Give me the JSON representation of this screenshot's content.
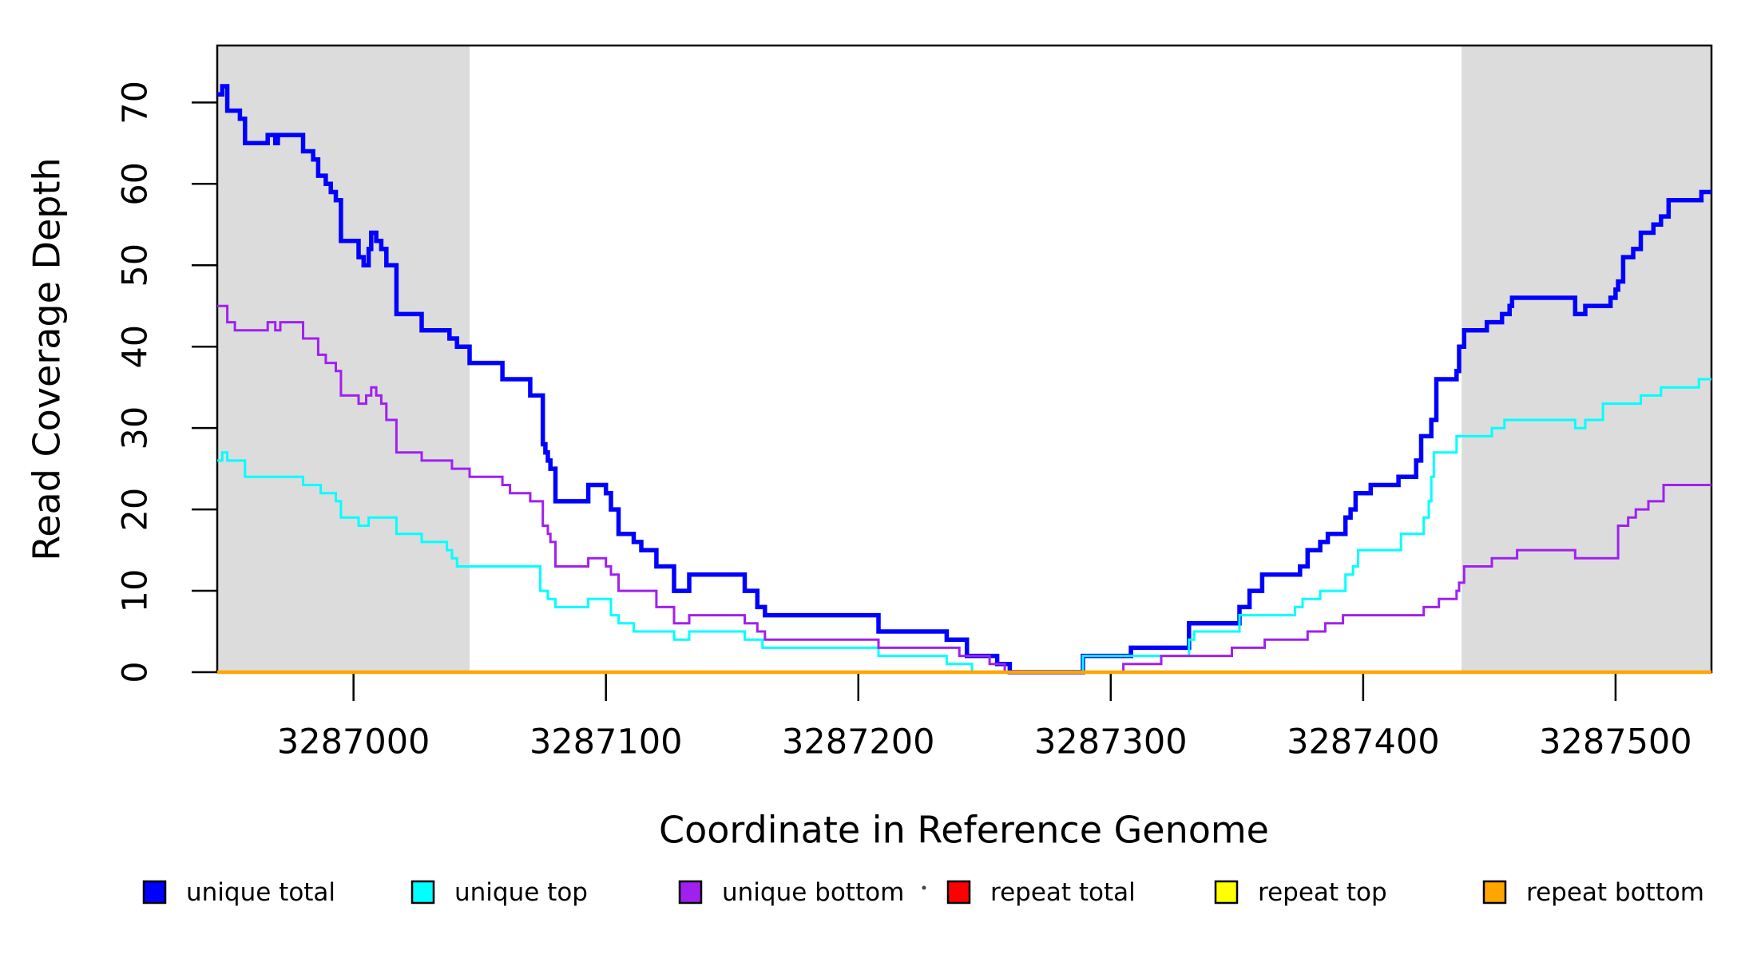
{
  "chart_data": {
    "type": "line",
    "subtype": "step-coverage",
    "title": "",
    "xlabel": "Coordinate in Reference Genome",
    "ylabel": "Read Coverage Depth",
    "xlim": [
      3286946,
      3287538
    ],
    "ylim": [
      0,
      77
    ],
    "grid": "off",
    "legend_position": "bottom",
    "x_ticks": [
      3287000,
      3287100,
      3287200,
      3287300,
      3287400,
      3287500
    ],
    "x_tick_labels": [
      "3287000",
      "3287100",
      "3287200",
      "3287300",
      "3287400",
      "3287500"
    ],
    "y_ticks": [
      0,
      10,
      20,
      30,
      40,
      50,
      60,
      70
    ],
    "y_tick_labels": [
      "0",
      "10",
      "20",
      "30",
      "40",
      "50",
      "60",
      "70"
    ],
    "shade_color": "#DCDCDC",
    "shaded_regions": [
      {
        "x0": 3286946,
        "x1": 3287046
      },
      {
        "x0": 3287439,
        "x1": 3287538
      }
    ],
    "series": [
      {
        "name": "unique total",
        "color": "#0000FF",
        "width": 5.5,
        "points": [
          [
            3286946,
            71
          ],
          [
            3286948,
            72
          ],
          [
            3286950,
            69
          ],
          [
            3286955,
            68
          ],
          [
            3286957,
            65
          ],
          [
            3286966,
            66
          ],
          [
            3286969,
            65
          ],
          [
            3286970,
            66
          ],
          [
            3286980,
            64
          ],
          [
            3286984,
            63
          ],
          [
            3286986,
            61
          ],
          [
            3286989,
            60
          ],
          [
            3286991,
            59
          ],
          [
            3286993,
            58
          ],
          [
            3286995,
            53
          ],
          [
            3287002,
            51
          ],
          [
            3287004,
            50
          ],
          [
            3287006,
            52
          ],
          [
            3287007,
            54
          ],
          [
            3287009,
            53
          ],
          [
            3287011,
            52
          ],
          [
            3287013,
            50
          ],
          [
            3287017,
            44
          ],
          [
            3287027,
            42
          ],
          [
            3287038,
            41
          ],
          [
            3287041,
            40
          ],
          [
            3287046,
            38
          ],
          [
            3287059,
            36
          ],
          [
            3287070,
            34
          ],
          [
            3287075,
            28
          ],
          [
            3287076,
            27
          ],
          [
            3287077,
            26
          ],
          [
            3287078,
            25
          ],
          [
            3287080,
            21
          ],
          [
            3287093,
            23
          ],
          [
            3287100,
            22
          ],
          [
            3287102,
            20
          ],
          [
            3287105,
            17
          ],
          [
            3287111,
            16
          ],
          [
            3287114,
            15
          ],
          [
            3287120,
            13
          ],
          [
            3287127,
            10
          ],
          [
            3287133,
            12
          ],
          [
            3287155,
            10
          ],
          [
            3287160,
            8
          ],
          [
            3287163,
            7
          ],
          [
            3287208,
            5
          ],
          [
            3287235,
            4
          ],
          [
            3287243,
            2
          ],
          [
            3287255,
            1
          ],
          [
            3287260,
            0
          ],
          [
            3287289,
            2
          ],
          [
            3287308,
            3
          ],
          [
            3287331,
            6
          ],
          [
            3287351,
            8
          ],
          [
            3287355,
            10
          ],
          [
            3287360,
            12
          ],
          [
            3287375,
            13
          ],
          [
            3287378,
            15
          ],
          [
            3287383,
            16
          ],
          [
            3287386,
            17
          ],
          [
            3287393,
            19
          ],
          [
            3287395,
            20
          ],
          [
            3287397,
            22
          ],
          [
            3287403,
            23
          ],
          [
            3287414,
            24
          ],
          [
            3287421,
            26
          ],
          [
            3287423,
            29
          ],
          [
            3287427,
            31
          ],
          [
            3287429,
            36
          ],
          [
            3287437,
            37
          ],
          [
            3287438,
            40
          ],
          [
            3287440,
            42
          ],
          [
            3287449,
            43
          ],
          [
            3287455,
            44
          ],
          [
            3287458,
            45
          ],
          [
            3287459,
            46
          ],
          [
            3287484,
            44
          ],
          [
            3287488,
            45
          ],
          [
            3287498,
            46
          ],
          [
            3287500,
            47
          ],
          [
            3287501,
            48
          ],
          [
            3287503,
            51
          ],
          [
            3287507,
            52
          ],
          [
            3287510,
            54
          ],
          [
            3287515,
            55
          ],
          [
            3287518,
            56
          ],
          [
            3287521,
            58
          ],
          [
            3287534,
            59
          ]
        ]
      },
      {
        "name": "unique top",
        "color": "#00FFFF",
        "width": 3,
        "points": [
          [
            3286946,
            26
          ],
          [
            3286948,
            27
          ],
          [
            3286950,
            26
          ],
          [
            3286957,
            24
          ],
          [
            3286980,
            23
          ],
          [
            3286987,
            22
          ],
          [
            3286993,
            21
          ],
          [
            3286995,
            19
          ],
          [
            3287002,
            18
          ],
          [
            3287006,
            19
          ],
          [
            3287017,
            17
          ],
          [
            3287027,
            16
          ],
          [
            3287037,
            15
          ],
          [
            3287039,
            14
          ],
          [
            3287041,
            13
          ],
          [
            3287074,
            10
          ],
          [
            3287077,
            9
          ],
          [
            3287080,
            8
          ],
          [
            3287093,
            9
          ],
          [
            3287102,
            7
          ],
          [
            3287105,
            6
          ],
          [
            3287111,
            5
          ],
          [
            3287127,
            4
          ],
          [
            3287133,
            5
          ],
          [
            3287155,
            4
          ],
          [
            3287162,
            3
          ],
          [
            3287208,
            2
          ],
          [
            3287235,
            1
          ],
          [
            3287245,
            0
          ],
          [
            3287289,
            2
          ],
          [
            3287331,
            4
          ],
          [
            3287333,
            5
          ],
          [
            3287351,
            7
          ],
          [
            3287373,
            8
          ],
          [
            3287376,
            9
          ],
          [
            3287383,
            10
          ],
          [
            3287393,
            12
          ],
          [
            3287396,
            13
          ],
          [
            3287398,
            15
          ],
          [
            3287415,
            17
          ],
          [
            3287424,
            19
          ],
          [
            3287426,
            21
          ],
          [
            3287427,
            24
          ],
          [
            3287428,
            27
          ],
          [
            3287437,
            29
          ],
          [
            3287451,
            30
          ],
          [
            3287456,
            31
          ],
          [
            3287484,
            30
          ],
          [
            3287488,
            31
          ],
          [
            3287495,
            33
          ],
          [
            3287510,
            34
          ],
          [
            3287518,
            35
          ],
          [
            3287533,
            36
          ]
        ]
      },
      {
        "name": "unique bottom",
        "color": "#A020F0",
        "width": 3,
        "points": [
          [
            3286946,
            45
          ],
          [
            3286950,
            43
          ],
          [
            3286953,
            42
          ],
          [
            3286966,
            43
          ],
          [
            3286969,
            42
          ],
          [
            3286971,
            43
          ],
          [
            3286980,
            41
          ],
          [
            3286986,
            39
          ],
          [
            3286989,
            38
          ],
          [
            3286993,
            37
          ],
          [
            3286995,
            34
          ],
          [
            3287002,
            33
          ],
          [
            3287005,
            34
          ],
          [
            3287007,
            35
          ],
          [
            3287009,
            34
          ],
          [
            3287011,
            33
          ],
          [
            3287013,
            31
          ],
          [
            3287017,
            27
          ],
          [
            3287027,
            26
          ],
          [
            3287039,
            25
          ],
          [
            3287046,
            24
          ],
          [
            3287059,
            23
          ],
          [
            3287062,
            22
          ],
          [
            3287070,
            21
          ],
          [
            3287075,
            18
          ],
          [
            3287077,
            17
          ],
          [
            3287078,
            16
          ],
          [
            3287080,
            13
          ],
          [
            3287093,
            14
          ],
          [
            3287100,
            13
          ],
          [
            3287102,
            12
          ],
          [
            3287105,
            10
          ],
          [
            3287120,
            8
          ],
          [
            3287127,
            6
          ],
          [
            3287133,
            7
          ],
          [
            3287155,
            6
          ],
          [
            3287160,
            5
          ],
          [
            3287163,
            4
          ],
          [
            3287208,
            3
          ],
          [
            3287240,
            2
          ],
          [
            3287252,
            1
          ],
          [
            3287258,
            0
          ],
          [
            3287305,
            1
          ],
          [
            3287320,
            2
          ],
          [
            3287348,
            3
          ],
          [
            3287361,
            4
          ],
          [
            3287378,
            5
          ],
          [
            3287385,
            6
          ],
          [
            3287392,
            7
          ],
          [
            3287424,
            8
          ],
          [
            3287430,
            9
          ],
          [
            3287437,
            10
          ],
          [
            3287438,
            11
          ],
          [
            3287440,
            13
          ],
          [
            3287451,
            14
          ],
          [
            3287461,
            15
          ],
          [
            3287484,
            14
          ],
          [
            3287501,
            18
          ],
          [
            3287505,
            19
          ],
          [
            3287508,
            20
          ],
          [
            3287513,
            21
          ],
          [
            3287519,
            23
          ]
        ]
      },
      {
        "name": "repeat total",
        "color": "#FF0000",
        "width": 3,
        "points": [
          [
            3286946,
            0
          ]
        ]
      },
      {
        "name": "repeat top",
        "color": "#FFFF00",
        "width": 3,
        "points": [
          [
            3286946,
            0
          ]
        ]
      },
      {
        "name": "repeat bottom",
        "color": "#FFA500",
        "width": 4.5,
        "points": [
          [
            3286946,
            0
          ]
        ]
      }
    ]
  },
  "legend": {
    "entries": [
      {
        "label": "unique total",
        "color": "#0000FF"
      },
      {
        "label": "unique top",
        "color": "#00FFFF"
      },
      {
        "label": "unique bottom",
        "color": "#A020F0"
      },
      {
        "label": "repeat total",
        "color": "#FF0000"
      },
      {
        "label": "repeat top",
        "color": "#FFFF00"
      },
      {
        "label": "repeat bottom",
        "color": "#FFA500"
      }
    ]
  }
}
